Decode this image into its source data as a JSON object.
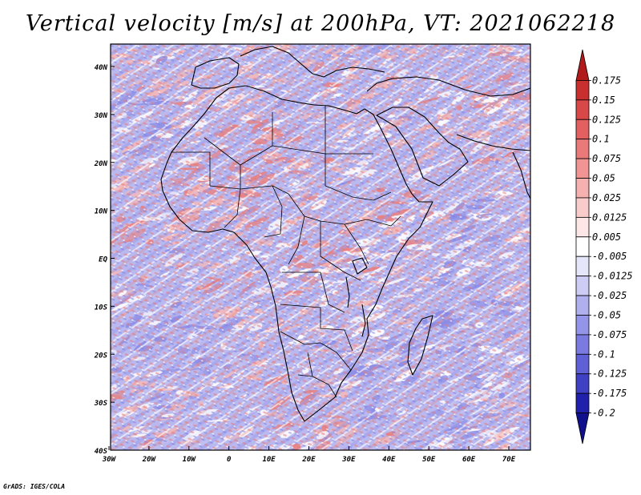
{
  "title": "Vertical velocity [m/s] at 200hPa, VT: 2021062218",
  "footer": "GrADS: IGES/COLA",
  "map": {
    "lon_range": [
      -30,
      75
    ],
    "lat_range": [
      -40,
      45
    ],
    "lat_ticks": [
      "40N",
      "30N",
      "20N",
      "10N",
      "EQ",
      "10S",
      "20S",
      "30S",
      "40S"
    ],
    "lon_ticks": [
      "30W",
      "20W",
      "10W",
      "0",
      "10E",
      "20E",
      "30E",
      "40E",
      "50E",
      "60E",
      "70E"
    ],
    "field_colors": {
      "strong_rising": "#e88080",
      "weak_rising": "#f4b8b8",
      "neutral": "#ffffff",
      "weak_sinking": "#c3c3f2",
      "strong_sinking": "#8c8ce6"
    }
  },
  "colorbar": {
    "levels": [
      "0.175",
      "0.15",
      "0.125",
      "0.1",
      "0.075",
      "0.05",
      "0.025",
      "0.0125",
      "0.005",
      "-0.005",
      "-0.0125",
      "-0.025",
      "-0.05",
      "-0.075",
      "-0.1",
      "-0.125",
      "-0.175",
      "-0.2"
    ],
    "colors": [
      "#b01a1a",
      "#c83030",
      "#d84848",
      "#e36060",
      "#ea7a7a",
      "#f09494",
      "#f5b0b0",
      "#f9cccc",
      "#fce6e6",
      "#ffffff",
      "#e6e6fb",
      "#ccccf5",
      "#b0b0ef",
      "#9494e8",
      "#7a7ae0",
      "#6060d6",
      "#4040c4",
      "#2020ac",
      "#10108c"
    ]
  }
}
